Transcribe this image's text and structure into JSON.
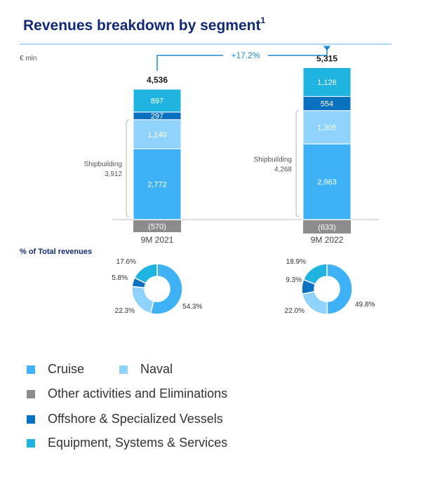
{
  "title": {
    "text": "Revenues breakdown by segment",
    "footnote": "1"
  },
  "colors": {
    "cruise": "#3fb2f7",
    "naval": "#8fd2fb",
    "other": "#8c8c8c",
    "offshore": "#0a70c0",
    "equipment": "#1fb4e0",
    "title": "#10297a",
    "arrow": "#1a88d6",
    "bracket": "#cccccc"
  },
  "chart_data": [
    {
      "type": "bar",
      "title": "",
      "ylabel": "€ mln",
      "stacked": true,
      "categories": [
        "9M 2021",
        "9M 2022"
      ],
      "totals": [
        "4,536",
        "5,315"
      ],
      "growth_label": "+17.2%",
      "bracket_labels": [
        {
          "label": "Shipbuilding",
          "value": "3,912"
        },
        {
          "label": "Shipbuilding",
          "value": "4,268"
        }
      ],
      "series": [
        {
          "name": "Cruise",
          "key": "cruise",
          "values": [
            2772,
            2963
          ],
          "labels": [
            "2,772",
            "2,963"
          ]
        },
        {
          "name": "Naval",
          "key": "naval",
          "values": [
            1140,
            1305
          ],
          "labels": [
            "1,140",
            "1,305"
          ]
        },
        {
          "name": "Offshore & Specialized Vessels",
          "key": "offshore",
          "values": [
            297,
            554
          ],
          "labels": [
            "297",
            "554"
          ]
        },
        {
          "name": "Equipment, Systems & Services",
          "key": "equipment",
          "values": [
            897,
            1126
          ],
          "labels": [
            "897",
            "1,126"
          ]
        },
        {
          "name": "Other activities and Eliminations",
          "key": "other",
          "values": [
            -570,
            -633
          ],
          "labels": [
            "(570)",
            "(633)"
          ]
        }
      ]
    },
    {
      "type": "pie",
      "title": "% of Total revenues",
      "donuts": [
        {
          "category": "9M 2021",
          "slices": [
            {
              "key": "cruise",
              "value": 54.3,
              "label": "54.3%"
            },
            {
              "key": "naval",
              "value": 22.3,
              "label": "22.3%"
            },
            {
              "key": "offshore",
              "value": 5.8,
              "label": "5.8%"
            },
            {
              "key": "equipment",
              "value": 17.6,
              "label": "17.6%"
            }
          ]
        },
        {
          "category": "9M 2022",
          "slices": [
            {
              "key": "cruise",
              "value": 49.8,
              "label": "49.8%"
            },
            {
              "key": "naval",
              "value": 22.0,
              "label": "22.0%"
            },
            {
              "key": "offshore",
              "value": 9.3,
              "label": "9.3%"
            },
            {
              "key": "equipment",
              "value": 18.9,
              "label": "18.9%"
            }
          ]
        }
      ]
    }
  ],
  "legend": [
    {
      "label": "Cruise",
      "key": "cruise"
    },
    {
      "label": "Naval",
      "key": "naval"
    },
    {
      "label": "Other activities and Eliminations",
      "key": "other"
    },
    {
      "label": "Offshore & Specialized Vessels",
      "key": "offshore"
    },
    {
      "label": "Equipment, Systems & Services",
      "key": "equipment"
    }
  ]
}
